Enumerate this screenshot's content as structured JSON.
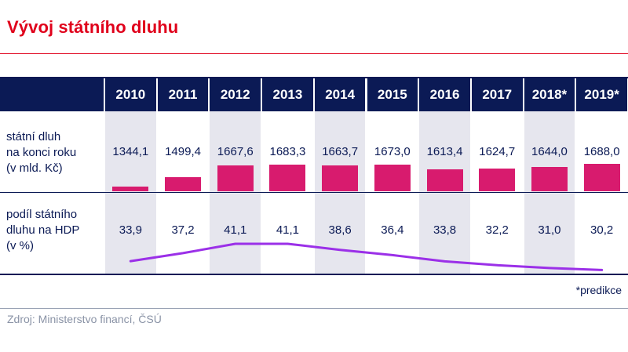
{
  "title": "Vývoj státního dluhu",
  "row1_label": [
    "státní dluh",
    "na konci roku",
    "(v mld. Kč)"
  ],
  "row2_label": [
    "podíl státního",
    "dluhu na HDP",
    "(v %)"
  ],
  "note": "*predikce",
  "source": "Zdroj: Ministerstvo financí, ČSÚ",
  "colors": {
    "header": "#0b1a55",
    "bar": "#d81b6e",
    "line": "#9b30e8",
    "title": "#e0001b"
  },
  "chart_data": {
    "type": "table",
    "title": "Vývoj státního dluhu",
    "categories": [
      "2010",
      "2011",
      "2012",
      "2013",
      "2014",
      "2015",
      "2016",
      "2017",
      "2018*",
      "2019*"
    ],
    "series": [
      {
        "name": "státní dluh na konci roku (v mld. Kč)",
        "kind": "bar",
        "labels": [
          "1344,1",
          "1499,4",
          "1667,6",
          "1683,3",
          "1663,7",
          "1673,0",
          "1613,4",
          "1624,7",
          "1644,0",
          "1688,0"
        ],
        "values": [
          1344.1,
          1499.4,
          1667.6,
          1683.3,
          1663.7,
          1673.0,
          1613.4,
          1624.7,
          1644.0,
          1688.0
        ]
      },
      {
        "name": "podíl státního dluhu na HDP (v %)",
        "kind": "line",
        "labels": [
          "33,9",
          "37,2",
          "41,1",
          "41,1",
          "38,6",
          "36,4",
          "33,8",
          "32,2",
          "31,0",
          "30,2"
        ],
        "values": [
          33.9,
          37.2,
          41.1,
          41.1,
          38.6,
          36.4,
          33.8,
          32.2,
          31.0,
          30.2
        ]
      }
    ]
  }
}
